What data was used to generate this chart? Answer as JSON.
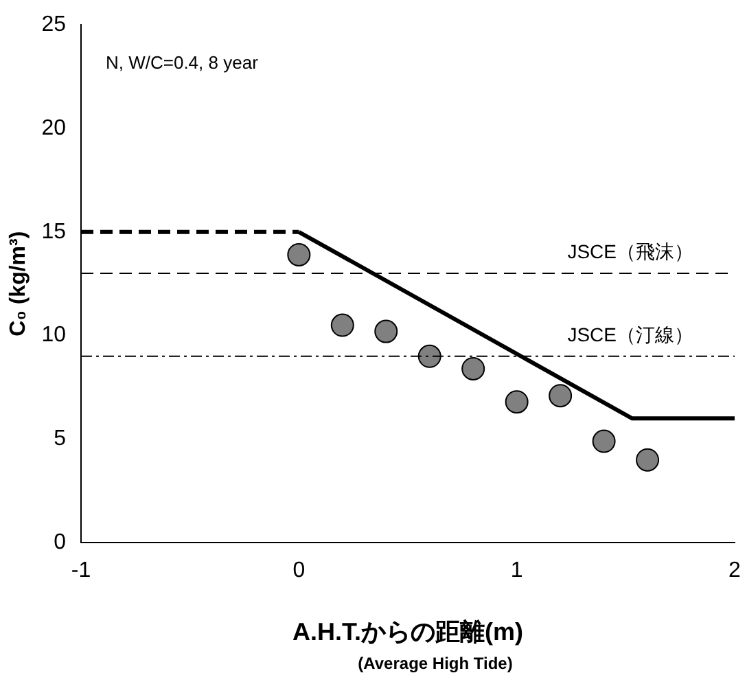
{
  "chart_data": {
    "type": "scatter",
    "xlabel": "A.H.T.からの距離(m)",
    "ylabel": "C₀ (kg/m³)",
    "xlim": [
      -1,
      2
    ],
    "xticks": [
      -1,
      0,
      1,
      2
    ],
    "ylim": [
      0,
      25
    ],
    "yticks": [
      0,
      5,
      10,
      15,
      20,
      25
    ],
    "grid": false,
    "legend": false,
    "series": [
      {
        "type": "line",
        "x": [
          -1,
          0
        ],
        "values": [
          15,
          15
        ],
        "color": "#000000",
        "line_style": "dashed",
        "marker": "none"
      },
      {
        "type": "line",
        "x": [
          0,
          1.53,
          2
        ],
        "values": [
          15,
          6,
          6
        ],
        "color": "#000000",
        "line_style": "solid",
        "marker": "none"
      },
      {
        "x": [
          0,
          0.2,
          0.4,
          0.6,
          0.8,
          1.0,
          1.2,
          1.4,
          1.6
        ],
        "values": [
          13.9,
          10.5,
          10.2,
          9.0,
          8.4,
          6.8,
          7.1,
          4.9,
          4.0
        ],
        "color": "#808080",
        "marker": "circle"
      }
    ],
    "ref_lines": [
      {
        "axis": "y",
        "value": 13,
        "label": "JSCE（飛沫）",
        "color": "#000000",
        "line_style": "dashed"
      },
      {
        "axis": "y",
        "value": 9,
        "label": "JSCE（汀線）",
        "color": "#000000",
        "line_style": "dashdot"
      }
    ],
    "annotations": [
      "N, W/C=0.4, 8 year",
      "(Average High Tide)"
    ]
  }
}
